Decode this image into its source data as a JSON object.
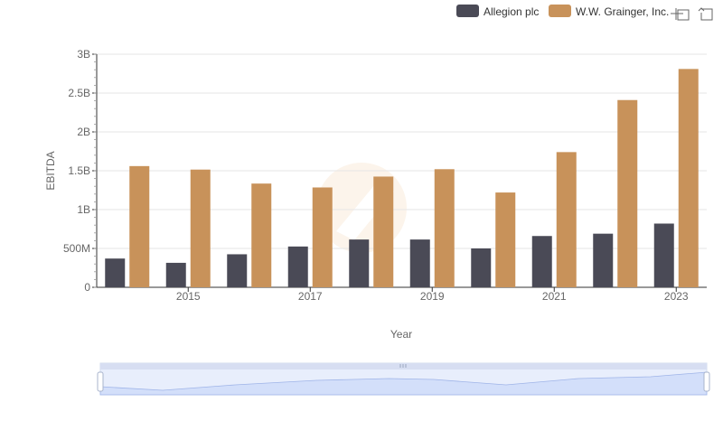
{
  "legend": {
    "items": [
      {
        "label": "Allegion plc",
        "color": "#4a4a56"
      },
      {
        "label": "W.W. Grainger, Inc.",
        "color": "#c8925a"
      }
    ],
    "position": "top-right"
  },
  "toolbox": {
    "zoom_icon": "zoom-icon",
    "restore_icon": "restore-icon"
  },
  "chart_data": {
    "type": "bar",
    "xlabel": "Year",
    "ylabel": "EBITDA",
    "categories": [
      "2014",
      "2015",
      "2016",
      "2017",
      "2018",
      "2019",
      "2020",
      "2021",
      "2022",
      "2023"
    ],
    "x_tick_labels": [
      "2015",
      "2017",
      "2019",
      "2021",
      "2023"
    ],
    "y_tick_labels": [
      "0",
      "500M",
      "1B",
      "1.5B",
      "2B",
      "2.5B",
      "3B"
    ],
    "ylim": [
      0,
      3000000000
    ],
    "grid": true,
    "series": [
      {
        "name": "Allegion plc",
        "color": "#4a4a56",
        "values": [
          370000000,
          315000000,
          425000000,
          525000000,
          615000000,
          615000000,
          500000000,
          660000000,
          690000000,
          820000000
        ]
      },
      {
        "name": "W.W. Grainger, Inc.",
        "color": "#c8925a",
        "values": [
          1560000000,
          1515000000,
          1335000000,
          1285000000,
          1425000000,
          1520000000,
          1220000000,
          1740000000,
          2410000000,
          2810000000
        ]
      }
    ]
  }
}
